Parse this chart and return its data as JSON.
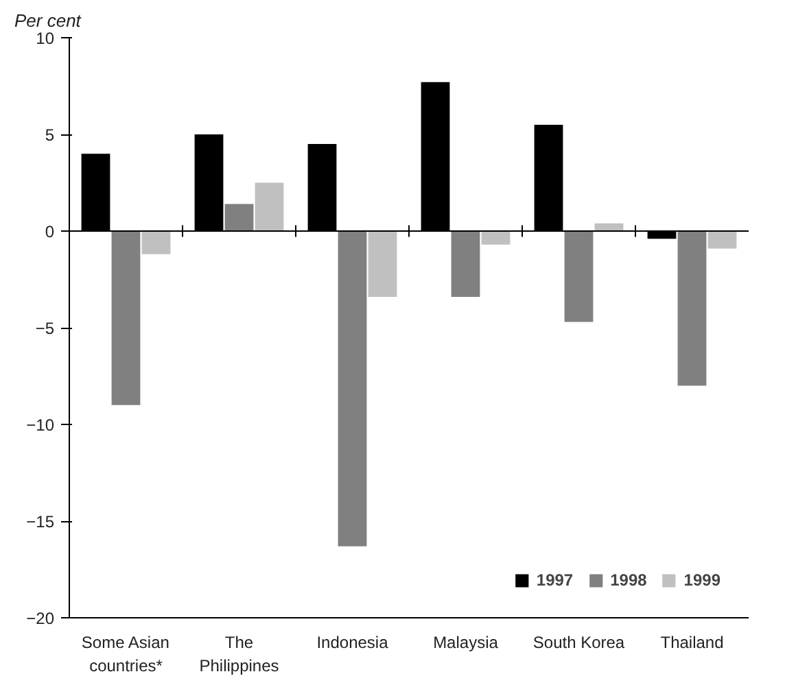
{
  "chart_data": {
    "type": "bar",
    "ylabel": "Per cent",
    "categories": [
      "Some Asian countries*",
      "The Philippines",
      "Indonesia",
      "Malaysia",
      "South Korea",
      "Thailand"
    ],
    "series": [
      {
        "name": "1997",
        "color": "#000000",
        "values": [
          4.0,
          5.0,
          4.5,
          7.7,
          5.5,
          -0.4
        ]
      },
      {
        "name": "1998",
        "color": "#808080",
        "values": [
          -9.0,
          1.4,
          -16.3,
          -3.4,
          -4.7,
          -8.0
        ]
      },
      {
        "name": "1999",
        "color": "#c0c0c0",
        "values": [
          -1.2,
          2.5,
          -3.4,
          -0.7,
          0.4,
          -0.9
        ]
      }
    ],
    "ylim": [
      -20,
      10
    ],
    "yticks": [
      -20,
      -15,
      -10,
      -5,
      0,
      5,
      10
    ],
    "legend": "bottom right"
  }
}
